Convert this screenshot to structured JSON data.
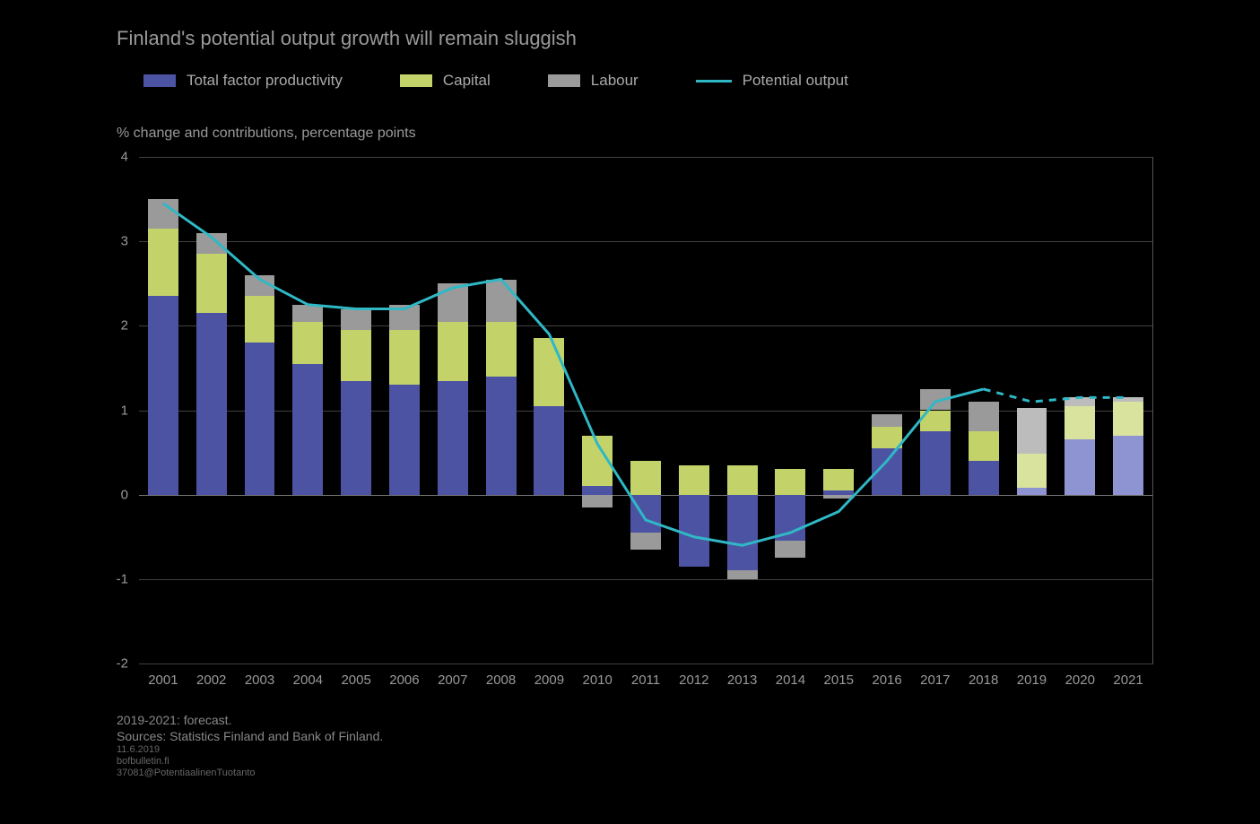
{
  "title": "Finland's potential output growth will remain sluggish",
  "ylabel": "% change and contributions, percentage points",
  "legend": {
    "items": [
      {
        "label": "Total factor productivity",
        "color": "#4d53a3",
        "type": "swatch"
      },
      {
        "label": "Capital",
        "color": "#c3d36a",
        "type": "swatch"
      },
      {
        "label": "Labour",
        "color": "#9a9a9a",
        "type": "swatch"
      },
      {
        "label": "Potential output",
        "color": "#2fb8c5",
        "type": "line"
      }
    ]
  },
  "chart": {
    "type": "stacked-bar+line",
    "ylim": [
      -2,
      4
    ],
    "ytick_step": 1,
    "categories": [
      "2001",
      "2002",
      "2003",
      "2004",
      "2005",
      "2006",
      "2007",
      "2008",
      "2009",
      "2010",
      "2011",
      "2012",
      "2013",
      "2014",
      "2015",
      "2016",
      "2017",
      "2018",
      "2019",
      "2020",
      "2021"
    ],
    "bar_width": 0.63,
    "colors": {
      "tfp": "#4d53a3",
      "tfp_fc": "#8e93d1",
      "capital": "#c3d36a",
      "capital_fc": "#d9e39e",
      "labour": "#9a9a9a",
      "labour_fc": "#bcbcbc",
      "line": "#2fb8c5",
      "line_fc": "#2fb8c5",
      "background": "#000000",
      "grid": "#404040",
      "axis": "#555555",
      "text": "#999999"
    },
    "data": [
      {
        "tfp": 2.35,
        "capital": 0.8,
        "labour": 0.35,
        "forecast": false
      },
      {
        "tfp": 2.15,
        "capital": 0.7,
        "labour": 0.25,
        "forecast": false
      },
      {
        "tfp": 1.8,
        "capital": 0.55,
        "labour": 0.25,
        "forecast": false
      },
      {
        "tfp": 1.55,
        "capital": 0.5,
        "labour": 0.2,
        "forecast": false
      },
      {
        "tfp": 1.35,
        "capital": 0.6,
        "labour": 0.25,
        "forecast": false
      },
      {
        "tfp": 1.3,
        "capital": 0.65,
        "labour": 0.3,
        "forecast": false
      },
      {
        "tfp": 1.35,
        "capital": 0.7,
        "labour": 0.45,
        "forecast": false
      },
      {
        "tfp": 1.4,
        "capital": 0.65,
        "labour": 0.5,
        "forecast": false
      },
      {
        "tfp": 1.05,
        "capital": 0.8,
        "labour": 0.0,
        "forecast": false
      },
      {
        "tfp": 0.1,
        "capital": 0.6,
        "labour": -0.15,
        "forecast": false
      },
      {
        "tfp": -0.45,
        "capital": 0.4,
        "labour": -0.2,
        "forecast": false
      },
      {
        "tfp": -0.85,
        "capital": 0.35,
        "labour": 0.0,
        "forecast": false
      },
      {
        "tfp": -0.9,
        "capital": 0.35,
        "labour": -0.1,
        "forecast": false
      },
      {
        "tfp": -0.55,
        "capital": 0.3,
        "labour": -0.2,
        "forecast": false
      },
      {
        "tfp": 0.05,
        "capital": 0.25,
        "labour": -0.05,
        "forecast": false
      },
      {
        "tfp": 0.55,
        "capital": 0.25,
        "labour": 0.15,
        "forecast": false
      },
      {
        "tfp": 0.75,
        "capital": 0.25,
        "labour": 0.25,
        "forecast": false
      },
      {
        "tfp": 0.4,
        "capital": 0.35,
        "labour": 0.35,
        "forecast": false
      },
      {
        "tfp": 0.08,
        "capital": 0.4,
        "labour": 0.55,
        "forecast": true
      },
      {
        "tfp": 0.65,
        "capital": 0.4,
        "labour": 0.1,
        "forecast": true
      },
      {
        "tfp": 0.7,
        "capital": 0.4,
        "labour": 0.05,
        "forecast": true
      }
    ],
    "line_values": [
      3.45,
      3.05,
      2.55,
      2.25,
      2.2,
      2.2,
      2.45,
      2.55,
      1.9,
      0.6,
      -0.3,
      -0.5,
      -0.6,
      -0.45,
      -0.2,
      0.4,
      1.1,
      1.25,
      1.1,
      1.15,
      1.15
    ]
  },
  "footer": {
    "line1": "2019-2021: forecast.",
    "line2": "Sources: Statistics Finland and Bank of Finland.",
    "meta1": "11.6.2019",
    "meta2": "bofbulletin.fi",
    "meta3": "37081@PotentiaalinenTuotanto"
  }
}
